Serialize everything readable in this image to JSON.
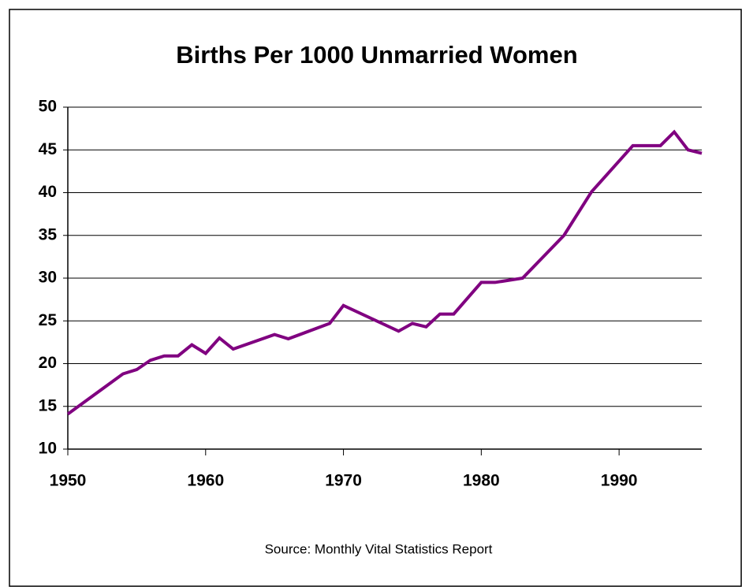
{
  "chart_data": {
    "type": "line",
    "title": "Births Per 1000 Unmarried Women",
    "source": "Source: Monthly Vital Statistics Report",
    "x": [
      1950,
      1954,
      1955,
      1956,
      1957,
      1958,
      1959,
      1960,
      1961,
      1962,
      1965,
      1966,
      1969,
      1970,
      1974,
      1975,
      1976,
      1977,
      1978,
      1980,
      1981,
      1983,
      1986,
      1988,
      1991,
      1993,
      1994,
      1995,
      1996
    ],
    "series": [
      {
        "color": "#800080",
        "values": [
          14.1,
          18.8,
          19.3,
          20.4,
          20.9,
          20.9,
          22.2,
          21.2,
          23.0,
          21.7,
          23.4,
          22.9,
          24.7,
          26.8,
          23.8,
          24.7,
          24.3,
          25.8,
          25.8,
          29.5,
          29.5,
          30.0,
          35.0,
          40.1,
          45.5,
          45.5,
          47.1,
          45.0,
          44.6
        ]
      }
    ],
    "xlim": [
      1950,
      1996
    ],
    "xticks": [
      1950,
      1960,
      1970,
      1980,
      1990
    ],
    "ylim": [
      10,
      50
    ],
    "yticks": [
      10,
      15,
      20,
      25,
      30,
      35,
      40,
      45,
      50
    ],
    "grid": true
  }
}
